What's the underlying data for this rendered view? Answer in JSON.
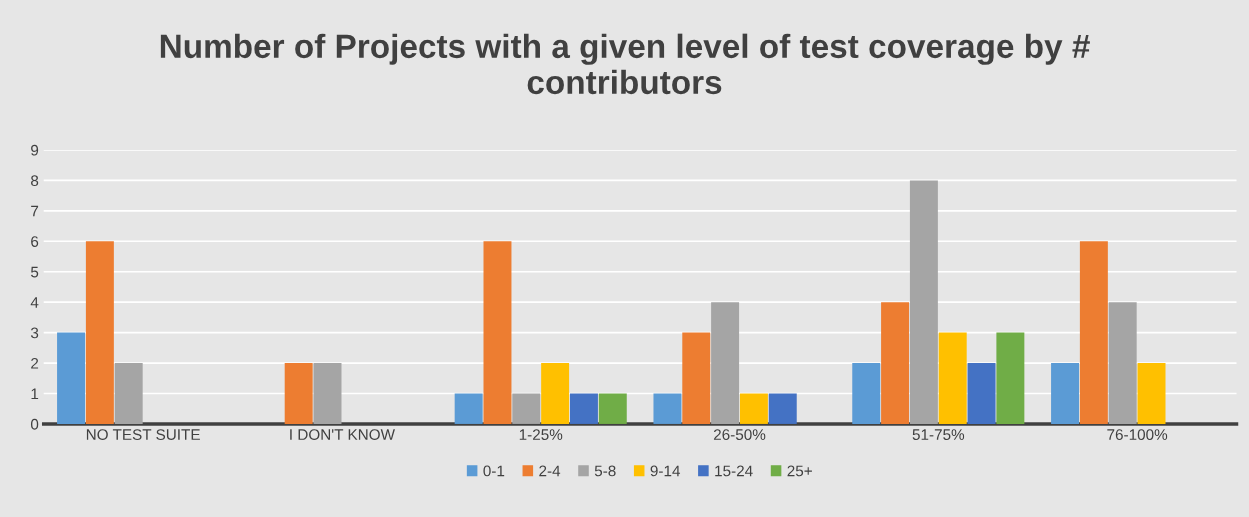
{
  "chart_data": {
    "type": "bar",
    "title": "Number of Projects with a given level of test coverage by # contributors",
    "categories": [
      "NO TEST SUITE",
      "I DON'T KNOW",
      "1-25%",
      "26-50%",
      "51-75%",
      "76-100%"
    ],
    "series": [
      {
        "name": "0-1",
        "color": "#5b9bd5",
        "values": [
          3,
          0,
          1,
          1,
          2,
          2
        ]
      },
      {
        "name": "2-4",
        "color": "#ed7d31",
        "values": [
          6,
          2,
          6,
          3,
          4,
          6
        ]
      },
      {
        "name": "5-8",
        "color": "#a5a5a5",
        "values": [
          2,
          2,
          1,
          4,
          8,
          4
        ]
      },
      {
        "name": "9-14",
        "color": "#ffc000",
        "values": [
          0,
          0,
          2,
          1,
          3,
          2
        ]
      },
      {
        "name": "15-24",
        "color": "#4472c4",
        "values": [
          0,
          0,
          1,
          1,
          2,
          0
        ]
      },
      {
        "name": "25+",
        "color": "#70ad47",
        "values": [
          0,
          0,
          1,
          0,
          3,
          0
        ]
      }
    ],
    "ylim": [
      0,
      9
    ],
    "yticks": [
      0,
      1,
      2,
      3,
      4,
      5,
      6,
      7,
      8,
      9
    ],
    "grid": "y",
    "legend": "bottom"
  }
}
